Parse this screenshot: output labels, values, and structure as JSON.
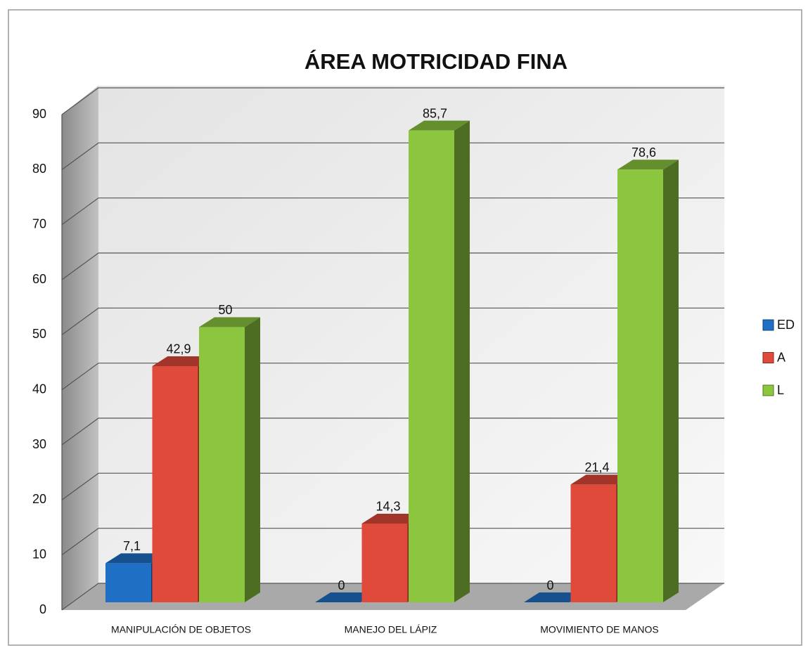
{
  "chart_data": {
    "type": "bar3d",
    "title": "ÁREA MOTRICIDAD FINA",
    "categories": [
      "MANIPULACIÓN DE OBJETOS",
      "MANEJO DEL LÁPIZ",
      "MOVIMIENTO DE MANOS"
    ],
    "series": [
      {
        "name": "ED",
        "color": "#1f6fc5",
        "values": [
          7.1,
          0,
          0
        ],
        "value_labels": [
          "7,1",
          "0",
          "0"
        ]
      },
      {
        "name": "A",
        "color": "#e04a3a",
        "values": [
          42.9,
          14.3,
          21.4
        ],
        "value_labels": [
          "42,9",
          "14,3",
          "21,4"
        ]
      },
      {
        "name": "L",
        "color": "#8cc63f",
        "values": [
          50,
          85.7,
          78.6
        ],
        "value_labels": [
          "50",
          "85,7",
          "78,6"
        ]
      }
    ],
    "ylim": [
      0,
      90
    ],
    "yticks": [
      0,
      10,
      20,
      30,
      40,
      50,
      60,
      70,
      80,
      90
    ],
    "grid": true,
    "legend": "right"
  }
}
